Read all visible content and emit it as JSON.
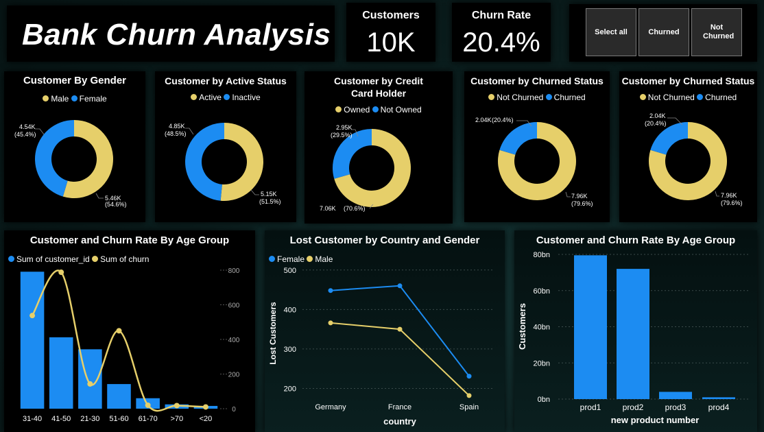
{
  "header": {
    "title": "Bank Churn Analysis",
    "kpis": [
      {
        "label": "Customers",
        "value": "10K"
      },
      {
        "label": "Churn Rate",
        "value": "20.4%"
      }
    ],
    "slicer": {
      "buttons": [
        "Select all",
        "Churned",
        "Not Churned"
      ]
    }
  },
  "colors": {
    "yellow": "#e6cf6a",
    "blue": "#1c8cf2",
    "card": "#000000"
  },
  "donuts": [
    {
      "title": "Customer By Gender",
      "legend": [
        "Male",
        "Female"
      ],
      "slices": [
        {
          "name": "Male",
          "value": 5.46,
          "label_value": "5.46K",
          "label_pct": "(54.6%)"
        },
        {
          "name": "Female",
          "value": 4.54,
          "label_value": "4.54K",
          "label_pct": "(45.4%)"
        }
      ]
    },
    {
      "title": "Customer by Active Status",
      "legend": [
        "Active",
        "Inactive"
      ],
      "slices": [
        {
          "name": "Active",
          "value": 5.15,
          "label_value": "5.15K",
          "label_pct": "(51.5%)"
        },
        {
          "name": "Inactive",
          "value": 4.85,
          "label_value": "4.85K",
          "label_pct": "(48.5%)"
        }
      ]
    },
    {
      "title": "Customer by Credit Card Holder",
      "legend": [
        "Owned",
        "Not Owned"
      ],
      "slices": [
        {
          "name": "Owned",
          "value": 7.06,
          "label_value": "7.06K",
          "label_pct": "(70.6%)"
        },
        {
          "name": "Not Owned",
          "value": 2.95,
          "label_value": "2.95K",
          "label_pct": "(29.5%)"
        }
      ]
    },
    {
      "title": "Customer by Churned Status",
      "legend": [
        "Not Churned",
        "Churned"
      ],
      "slices": [
        {
          "name": "Not Churned",
          "value": 7.96,
          "label_value": "7.96K",
          "label_pct": "(79.6%)"
        },
        {
          "name": "Churned",
          "value": 2.04,
          "label_value": "2.04K",
          "label_pct": "(20.4%)"
        }
      ]
    },
    {
      "title": "Customer by Churned Status",
      "legend": [
        "Not Churned",
        "Churned"
      ],
      "slices": [
        {
          "name": "Not Churned",
          "value": 7.96,
          "label_value": "7.96K",
          "label_pct": "(79.6%)"
        },
        {
          "name": "Churned",
          "value": 2.04,
          "label_value": "2.04K",
          "label_pct": "(20.4%)"
        }
      ]
    }
  ],
  "chart_data": [
    {
      "type": "bar",
      "title": "Customer and Churn Rate By Age Group",
      "categories": [
        "31-40",
        "41-50",
        "21-30",
        "51-60",
        "61-70",
        ">70",
        "<20"
      ],
      "series": [
        {
          "name": "Sum of customer_id",
          "type": "bar",
          "values": [
            4450,
            2320,
            1930,
            800,
            340,
            140,
            90
          ]
        },
        {
          "name": "Sum of churn",
          "type": "line",
          "axis": "right",
          "values": [
            538,
            788,
            143,
            450,
            20,
            18,
            10
          ]
        }
      ],
      "y_right_ticks": [
        "800",
        "600",
        "400",
        "200",
        "0"
      ],
      "ylim_left": [
        0,
        4500
      ],
      "ylim_right": [
        0,
        800
      ],
      "legend": "top-left"
    },
    {
      "type": "line",
      "title": "Lost Customer by Country and Gender",
      "categories": [
        "Germany",
        "France",
        "Spain"
      ],
      "series": [
        {
          "name": "Female",
          "values": [
            448,
            460,
            231
          ]
        },
        {
          "name": "Male",
          "values": [
            366,
            350,
            182
          ]
        }
      ],
      "xlabel": "country",
      "ylabel": "Lost Customers",
      "y_ticks": [
        "500",
        "400",
        "300",
        "200"
      ],
      "ylim": [
        180,
        510
      ],
      "legend": "top-left"
    },
    {
      "type": "bar",
      "title": "Customer and Churn Rate By Age Group",
      "categories": [
        "prod1",
        "prod2",
        "prod3",
        "prod4"
      ],
      "values": [
        79.5,
        72,
        4,
        1
      ],
      "xlabel": "new product number",
      "ylabel": "Customers",
      "y_ticks": [
        "80bn",
        "60bn",
        "40bn",
        "20bn",
        "0bn"
      ],
      "ylim": [
        0,
        80
      ]
    }
  ]
}
